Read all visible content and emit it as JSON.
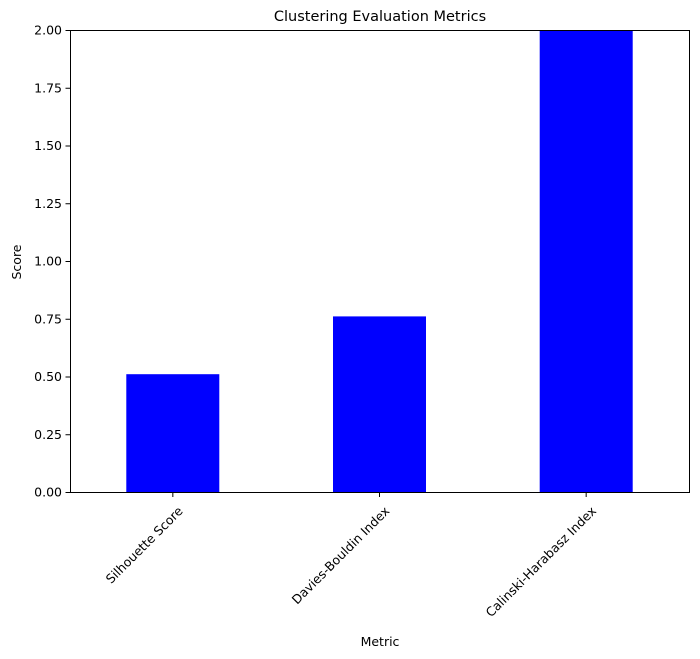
{
  "chart_data": {
    "type": "bar",
    "title": "Clustering Evaluation Metrics",
    "xlabel": "Metric",
    "ylabel": "Score",
    "categories": [
      "Silhouette Score",
      "Davies-Bouldin Index",
      "Calinski-Harabasz Index"
    ],
    "values": [
      0.51,
      0.76,
      2.0
    ],
    "ylim": [
      0,
      2.0
    ],
    "yticks": [
      0.0,
      0.25,
      0.5,
      0.75,
      1.0,
      1.25,
      1.5,
      1.75,
      2.0
    ],
    "ytick_labels": [
      "0.00",
      "0.25",
      "0.50",
      "0.75",
      "1.00",
      "1.25",
      "1.50",
      "1.75",
      "2.00"
    ],
    "bar_color": "#0000ff",
    "grid": false,
    "legend": "none"
  }
}
